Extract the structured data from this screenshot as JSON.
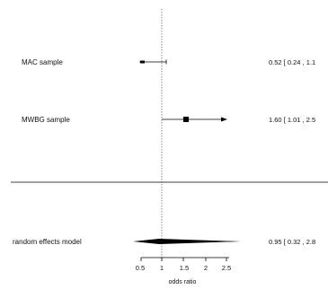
{
  "chart_data": {
    "type": "forest",
    "xlabel": "odds ratio",
    "x_ticks": [
      "0.5",
      "1",
      "1.5",
      "2",
      "2.5"
    ],
    "reference_line": 1,
    "studies": [
      {
        "label": "MAC sample",
        "estimate": 0.52,
        "ci_low": 0.24,
        "ci_high": 1.1,
        "ci_text": "0.52 [ 0.24 ,  1.1"
      },
      {
        "label": "MWBG sample",
        "estimate": 1.6,
        "ci_low": 1.01,
        "ci_high": 2.5,
        "ci_text": "1.60 [ 1.01 ,  2.5"
      }
    ],
    "summary": {
      "label": "random effects model",
      "estimate": 0.95,
      "ci_low": 0.32,
      "ci_high": 2.8,
      "ci_text": "0.95 [ 0.32 ,  2.8"
    }
  }
}
